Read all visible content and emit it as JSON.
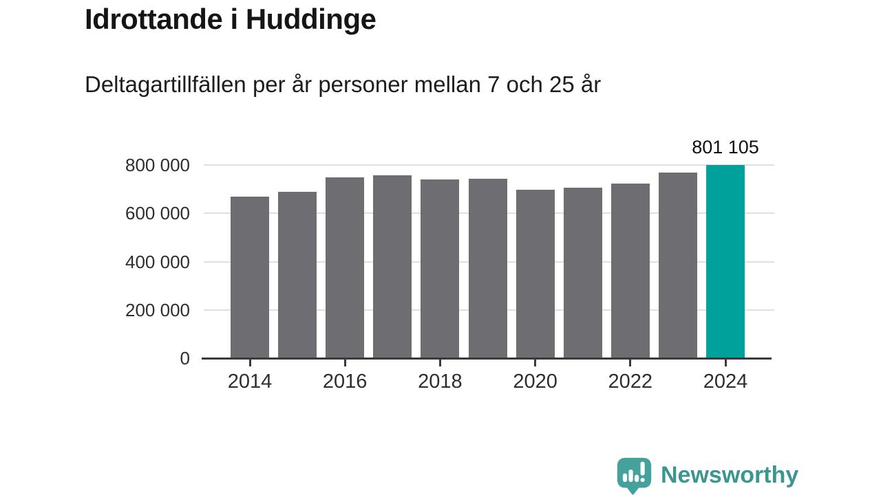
{
  "page": {
    "title": "Idrottande i Huddinge",
    "subtitle": "Deltagartillfällen per år personer mellan 7 och 25 år"
  },
  "chart_data": {
    "type": "bar",
    "title": "Idrottande i Huddinge",
    "subtitle": "Deltagartillfällen per år personer mellan 7 och 25 år",
    "categories": [
      "2014",
      "2015",
      "2016",
      "2017",
      "2018",
      "2019",
      "2020",
      "2021",
      "2022",
      "2023",
      "2024"
    ],
    "values": [
      668000,
      690000,
      748000,
      757000,
      740000,
      742000,
      698000,
      707000,
      722000,
      768000,
      801105
    ],
    "highlight_index": 10,
    "highlight_value_label": "801 105",
    "ylim": [
      0,
      800000
    ],
    "yticks": [
      0,
      200000,
      400000,
      600000,
      800000
    ],
    "ytick_labels": [
      "0",
      "200 000",
      "400 000",
      "600 000",
      "800 000"
    ],
    "xtick_years": [
      2014,
      2016,
      2018,
      2020,
      2022,
      2024
    ],
    "xtick_labels": [
      "2014",
      "2016",
      "2018",
      "2020",
      "2022",
      "2024"
    ],
    "grid": "horizontal",
    "legend": "none",
    "colors": {
      "bar": "#6e6e72",
      "highlight": "#00a19a",
      "gridline": "#e0e0e0",
      "axis": "#3a3a3a",
      "label_text": "#2e2e2e"
    }
  },
  "footer": {
    "brand": "Newsworthy",
    "brand_color": "#3b9690",
    "logo_icon": "bar-chart-speech-bubble-icon",
    "logo_color": "#45a19b"
  }
}
